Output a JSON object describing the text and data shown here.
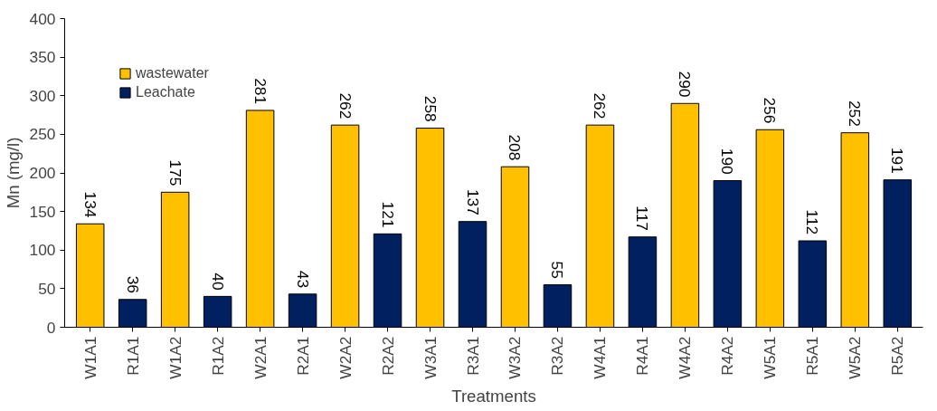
{
  "chart_data": {
    "type": "bar",
    "xlabel": "Treatments",
    "ylabel": "Mn (mg/l)",
    "categories": [
      "W1A1",
      "R1A1",
      "W1A2",
      "R1A2",
      "W2A1",
      "R2A1",
      "W2A2",
      "R2A2",
      "W3A1",
      "R3A1",
      "W3A2",
      "R3A2",
      "W4A1",
      "R4A1",
      "W4A2",
      "R4A2",
      "W5A1",
      "R5A1",
      "W5A2",
      "R5A2"
    ],
    "series": [
      {
        "name": "wastewater",
        "color": "#ffc000",
        "values": [
          134,
          null,
          175,
          null,
          281,
          null,
          262,
          null,
          258,
          null,
          208,
          null,
          262,
          null,
          290,
          null,
          256,
          null,
          252,
          null
        ]
      },
      {
        "name": "Leachate",
        "color": "#002060",
        "values": [
          null,
          36,
          null,
          40,
          null,
          43,
          null,
          121,
          null,
          137,
          null,
          55,
          null,
          117,
          null,
          190,
          null,
          112,
          null,
          191
        ]
      }
    ],
    "stacked": true,
    "ylim": [
      0,
      400
    ],
    "yticks": [
      0,
      50,
      100,
      150,
      200,
      250,
      300,
      350,
      400
    ],
    "grid": false,
    "legend": "top left",
    "data_labels": true
  }
}
